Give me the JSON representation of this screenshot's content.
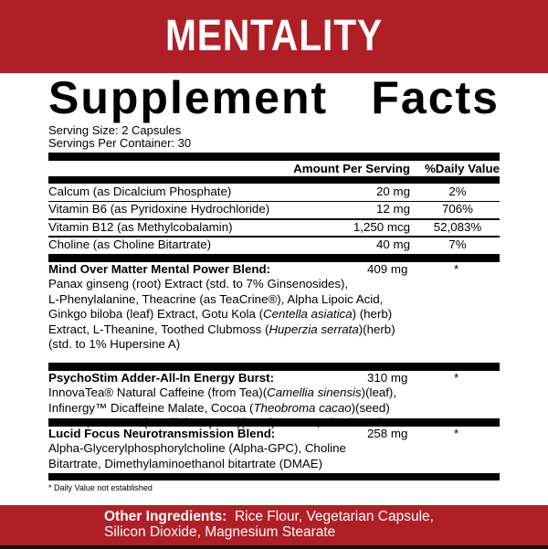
{
  "brand": "MENTALITY",
  "title": [
    "Supplement",
    "Facts"
  ],
  "serving_size": "Serving Size: 2 Capsules",
  "servings_per_container": "Servings Per Container: 30",
  "col_amount": "Amount Per Serving",
  "col_dv": "%Daily Value",
  "nutrients": [
    {
      "name": "Calcum (as Dicalcium Phosphate)",
      "amount": "20 mg",
      "dv": "2%"
    },
    {
      "name": "Vitamin B6 (as Pyridoxine Hydrochloride)",
      "amount": "12 mg",
      "dv": "706%"
    },
    {
      "name": "Vitamin B12 (as Methylcobalamin)",
      "amount": "1,250 mcg",
      "dv": "52,083%"
    },
    {
      "name": "Choline (as Choline Bitartrate)",
      "amount": "40 mg",
      "dv": "7%"
    }
  ],
  "blends": [
    {
      "name": "Mind Over Matter Mental Power Blend:",
      "amount": "409 mg",
      "dv": "*",
      "lines": [
        "Panax ginseng (root) Extract (std. to 7% Ginsenosides),",
        "L-Phenylalanine, Theacrine (as TeaCrine®), Alpha Lipoic Acid,",
        "Ginkgo biloba (leaf) Extract, Gotu Kola (<i>Centella asiatica</i>) (herb)",
        "Extract, L-Theanine, Toothed Clubmoss (<i>Huperzia serrata</i>)(herb)",
        "(std. to 1% Hupersine A)"
      ]
    },
    {
      "name": "PsychoStim Adder-All-In Energy Burst:",
      "amount": "310 mg",
      "dv": "*",
      "lines": [
        "InnovaTea® Natural Caffeine (from Tea)(<i>Camellia sinensis</i>)(leaf),",
        "Infinergy™ Dicaffeine Malate, Cocoa (<i>Theobroma cacao</i>)(seed)",
        "Extract, Guarana (<i>Paullinia cupana</i>)(seed) Extract, Theobromine"
      ]
    },
    {
      "name": "Lucid Focus Neurotransmission Blend:",
      "amount": "258 mg",
      "dv": "*",
      "lines": [
        "Alpha-Glycerylphosphorylcholine (Alpha-GPC), Choline",
        "Bitartrate, Dimethylaminoethanol bitartrate (DMAE)"
      ]
    }
  ],
  "footnote": "* Daily Value not established",
  "other_label": "Other Ingredients:",
  "other_lines": [
    "Rice Flour, Vegetarian Capsule,",
    "Silicon Dioxide, Magnesium Stearate"
  ],
  "colors": {
    "brand_red": "#b01f26"
  }
}
